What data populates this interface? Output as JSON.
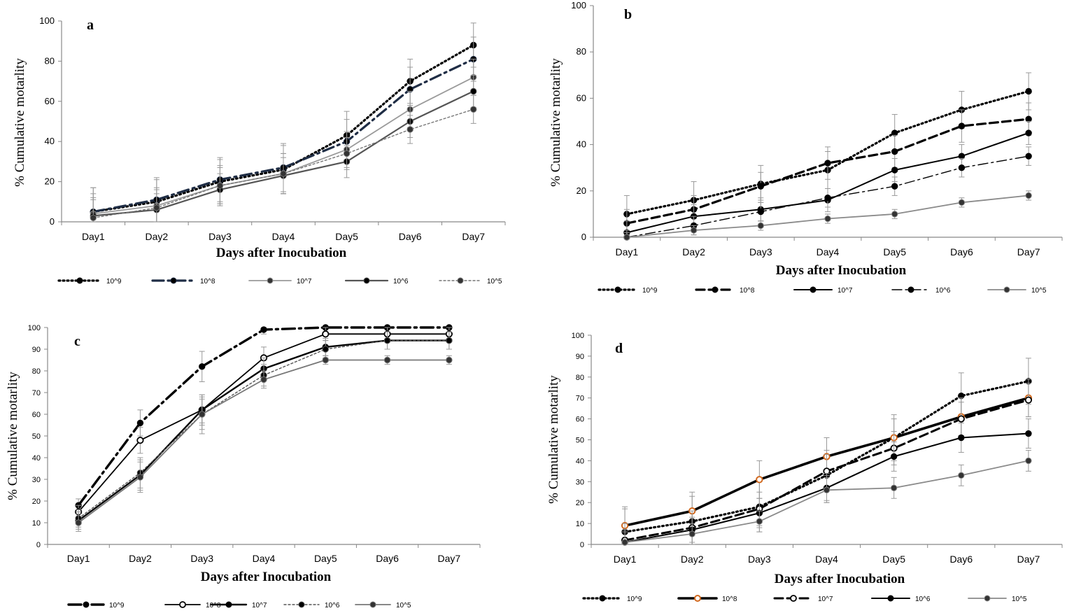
{
  "chart_data": [
    {
      "type": "line",
      "panel_label": "a",
      "title": "",
      "xlabel": "Days after Inocubation",
      "ylabel": "% Cumulative motarlity",
      "categories": [
        "Day1",
        "Day2",
        "Day3",
        "Day4",
        "Day5",
        "Day6",
        "Day7"
      ],
      "yticks": [
        "0",
        "20",
        "40",
        "60",
        "80",
        "100"
      ],
      "ylim": [
        0,
        100
      ],
      "legend": "bottom",
      "series": [
        {
          "name": "10^9",
          "values": [
            5,
            10,
            20,
            26,
            43,
            70,
            88
          ],
          "err": [
            12,
            11,
            11,
            12,
            12,
            11,
            11
          ],
          "color": "#000000",
          "dash": "2,4",
          "width": 3.2,
          "marker": "filled"
        },
        {
          "name": "10^8",
          "values": [
            5,
            11,
            21,
            27,
            40,
            66,
            81
          ],
          "err": [
            12,
            11,
            11,
            12,
            11,
            11,
            11
          ],
          "color": "#1f2d45",
          "dash": "16,6,3,6",
          "width": 3.2,
          "marker": "filled"
        },
        {
          "name": "10^7",
          "values": [
            4,
            8,
            18,
            24,
            36,
            56,
            72
          ],
          "err": [
            10,
            9,
            10,
            10,
            9,
            9,
            9
          ],
          "color": "#9a9a9a",
          "dash": "",
          "width": 1.8,
          "marker": "filled"
        },
        {
          "name": "10^6",
          "values": [
            3,
            6,
            16,
            23,
            30,
            50,
            65
          ],
          "err": [
            9,
            8,
            8,
            9,
            8,
            8,
            8
          ],
          "color": "#555555",
          "dash": "",
          "width": 2.2,
          "marker": "filled"
        },
        {
          "name": "10^5",
          "values": [
            2,
            7,
            18,
            24,
            34,
            46,
            56
          ],
          "err": [
            9,
            9,
            9,
            10,
            8,
            7,
            7
          ],
          "color": "#777777",
          "dash": "3,3",
          "width": 1.4,
          "marker": "filled"
        }
      ]
    },
    {
      "type": "line",
      "panel_label": "b",
      "title": "",
      "xlabel": "Days after Inocubation",
      "ylabel": "% Cumulative motarlity",
      "categories": [
        "Day1",
        "Day2",
        "Day3",
        "Day4",
        "Day5",
        "Day6",
        "Day7"
      ],
      "yticks": [
        "0",
        "20",
        "40",
        "60",
        "80",
        "100"
      ],
      "ylim": [
        0,
        100
      ],
      "legend": "bottom",
      "series": [
        {
          "name": "10^9",
          "values": [
            10,
            16,
            23,
            29,
            45,
            55,
            63
          ],
          "err": [
            8,
            8,
            8,
            8,
            8,
            8,
            8
          ],
          "color": "#000000",
          "dash": "2,4",
          "width": 3.2,
          "marker": "filled"
        },
        {
          "name": "10^8",
          "values": [
            6,
            12,
            22,
            32,
            37,
            48,
            51
          ],
          "err": [
            6,
            6,
            6,
            7,
            7,
            7,
            7
          ],
          "color": "#000000",
          "dash": "12,6",
          "width": 3.2,
          "marker": "filled"
        },
        {
          "name": "10^7",
          "values": [
            2,
            9,
            12,
            16,
            29,
            35,
            45
          ],
          "err": [
            5,
            5,
            5,
            5,
            5,
            5,
            5
          ],
          "color": "#000000",
          "dash": "",
          "width": 2,
          "marker": "filled"
        },
        {
          "name": "10^6",
          "values": [
            0,
            5,
            11,
            17,
            22,
            30,
            35
          ],
          "err": [
            3,
            4,
            4,
            4,
            4,
            4,
            4
          ],
          "color": "#000000",
          "dash": "14,5,3,5",
          "width": 1.4,
          "marker": "filled"
        },
        {
          "name": "10^5",
          "values": [
            0,
            3,
            5,
            8,
            10,
            15,
            18
          ],
          "err": [
            2,
            2,
            2,
            2,
            2,
            2,
            2
          ],
          "color": "#8a8a8a",
          "dash": "",
          "width": 1.8,
          "marker": "filled"
        }
      ]
    },
    {
      "type": "line",
      "panel_label": "c",
      "title": "",
      "xlabel": "Days after Inocubation",
      "ylabel": "% Cumulative motarlity",
      "categories": [
        "Day1",
        "Day2",
        "Day3",
        "Day4",
        "Day5",
        "Day6",
        "Day7"
      ],
      "yticks": [
        "0",
        "10",
        "20",
        "30",
        "40",
        "50",
        "60",
        "70",
        "80",
        "90",
        "100"
      ],
      "ylim": [
        0,
        100
      ],
      "legend": "bottom",
      "series": [
        {
          "name": "10^9",
          "values": [
            18,
            56,
            82,
            99,
            100,
            100,
            100
          ],
          "err": [
            3,
            6,
            7,
            2,
            1,
            1,
            1
          ],
          "color": "#000000",
          "dash": "18,6,3,6",
          "width": 3.4,
          "marker": "filled"
        },
        {
          "name": "10^8",
          "values": [
            15,
            48,
            62,
            86,
            97,
            97,
            97
          ],
          "err": [
            3,
            6,
            6,
            5,
            3,
            3,
            3
          ],
          "color": "#000000",
          "dash": "",
          "width": 1.8,
          "marker": "open"
        },
        {
          "name": "10^7",
          "values": [
            11,
            32,
            62,
            81,
            91,
            94,
            94
          ],
          "err": [
            4,
            7,
            7,
            5,
            4,
            4,
            4
          ],
          "color": "#000000",
          "dash": "",
          "width": 2.4,
          "marker": "filled"
        },
        {
          "name": "10^6",
          "values": [
            12,
            33,
            60,
            78,
            90,
            94,
            94
          ],
          "err": [
            4,
            7,
            7,
            5,
            4,
            4,
            4
          ],
          "color": "#555555",
          "dash": "3,3",
          "width": 1.4,
          "marker": "filled"
        },
        {
          "name": "10^5",
          "values": [
            10,
            31,
            60,
            76,
            85,
            85,
            85
          ],
          "err": [
            4,
            7,
            9,
            4,
            2,
            2,
            2
          ],
          "color": "#777777",
          "dash": "",
          "width": 1.8,
          "marker": "filled"
        }
      ]
    },
    {
      "type": "line",
      "panel_label": "d",
      "title": "",
      "xlabel": "Days after Inocubation",
      "ylabel": "% Cumulative motarlity",
      "categories": [
        "Day1",
        "Day2",
        "Day3",
        "Day4",
        "Day5",
        "Day6",
        "Day7"
      ],
      "yticks": [
        "0",
        "10",
        "20",
        "30",
        "40",
        "50",
        "60",
        "70",
        "80",
        "90",
        "100"
      ],
      "ylim": [
        0,
        100
      ],
      "legend": "bottom",
      "series": [
        {
          "name": "10^9",
          "values": [
            6,
            11,
            18,
            33,
            51,
            71,
            78
          ],
          "err": [
            11,
            12,
            12,
            12,
            11,
            11,
            11
          ],
          "color": "#000000",
          "dash": "2,4",
          "width": 3.2,
          "marker": "filled"
        },
        {
          "name": "10^8",
          "values": [
            9,
            16,
            31,
            42,
            51,
            61,
            70
          ],
          "err": [
            9,
            9,
            9,
            9,
            9,
            9,
            9
          ],
          "color": "#000000",
          "dash": "",
          "width": 3.6,
          "marker": "orange"
        },
        {
          "name": "10^7",
          "values": [
            2,
            8,
            17,
            35,
            46,
            60,
            69
          ],
          "err": [
            8,
            8,
            8,
            8,
            8,
            8,
            8
          ],
          "color": "#000000",
          "dash": "12,6",
          "width": 3,
          "marker": "open"
        },
        {
          "name": "10^6",
          "values": [
            1,
            7,
            15,
            27,
            42,
            51,
            53
          ],
          "err": [
            6,
            6,
            7,
            7,
            7,
            7,
            7
          ],
          "color": "#000000",
          "dash": "",
          "width": 2,
          "marker": "filled"
        },
        {
          "name": "10^5",
          "values": [
            1,
            5,
            11,
            26,
            27,
            33,
            40
          ],
          "err": [
            5,
            5,
            5,
            6,
            5,
            5,
            5
          ],
          "color": "#8a8a8a",
          "dash": "",
          "width": 1.8,
          "marker": "filled"
        }
      ]
    }
  ]
}
